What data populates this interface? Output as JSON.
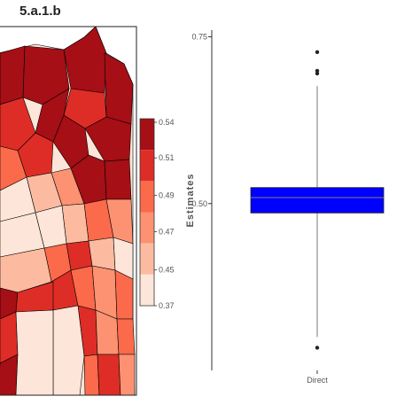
{
  "panel_label": "5.a.1.b",
  "colors": {
    "map_border": "#000000",
    "box_fill": "#0000ff",
    "median": "#7f7f7f",
    "whisker": "#777777",
    "outlier": "#222222"
  },
  "choropleth": {
    "legend_ticks": [
      "0.54",
      "0.51",
      "0.49",
      "0.47",
      "0.45",
      "0.37"
    ],
    "legend_colors": [
      "#a50f15",
      "#de2d26",
      "#fb6a4a",
      "#fc9272",
      "#fcbba1",
      "#fee5d9"
    ]
  },
  "chart_data": {
    "type": "boxplot",
    "title": "",
    "xlabel": "",
    "ylabel": "Estimates",
    "categories": [
      "Direct"
    ],
    "ylim": [
      0.25,
      0.76
    ],
    "yticks": [
      0.75,
      0.5
    ],
    "ytick_labels": [
      "0.75",
      "0.50"
    ],
    "boxes": [
      {
        "category": "Direct",
        "q1": 0.486,
        "median": 0.509,
        "q3": 0.524,
        "whisker_low": 0.3,
        "whisker_high": 0.676,
        "outliers": [
          0.284,
          0.695,
          0.699,
          0.727
        ]
      }
    ],
    "grid": false,
    "legend": "none"
  }
}
